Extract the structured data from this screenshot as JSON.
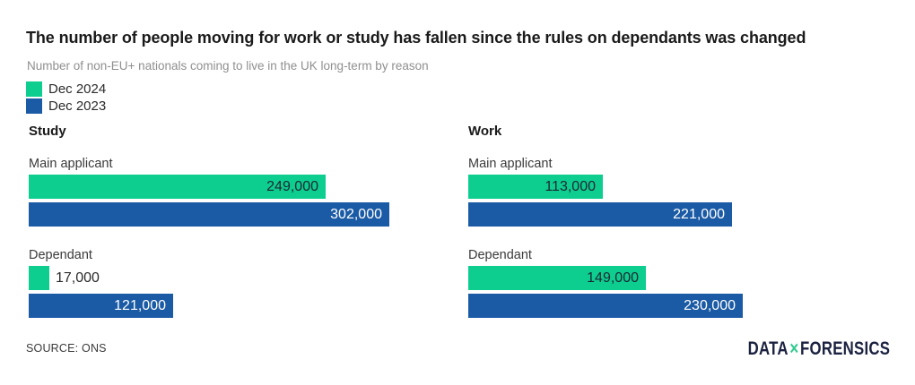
{
  "chart_data": {
    "type": "bar",
    "orientation": "horizontal",
    "title": "The number of people moving for work or study has fallen since the rules on dependants was changed",
    "subtitle": "Number of non-EU+ nationals coming to live in the UK long-term by reason",
    "legend_position": "top-left",
    "grid": false,
    "value_axis": {
      "min": 0,
      "max": 360000,
      "tick_labels_shown": false
    },
    "series": [
      {
        "name": "Dec 2024",
        "color": "#0dce8f",
        "value_text_color": "#1a2733"
      },
      {
        "name": "Dec 2023",
        "color": "#1b5aa5",
        "value_text_color": "#ffffff"
      }
    ],
    "panels": [
      {
        "title": "Study",
        "groups": [
          {
            "label": "Main applicant",
            "values": [
              249000,
              302000
            ],
            "value_labels": [
              "249,000",
              "302,000"
            ]
          },
          {
            "label": "Dependant",
            "values": [
              17000,
              121000
            ],
            "value_labels": [
              "17,000",
              "121,000"
            ]
          }
        ]
      },
      {
        "title": "Work",
        "groups": [
          {
            "label": "Main applicant",
            "values": [
              113000,
              221000
            ],
            "value_labels": [
              "113,000",
              "221,000"
            ]
          },
          {
            "label": "Dependant",
            "values": [
              149000,
              230000
            ],
            "value_labels": [
              "149,000",
              "230,000"
            ]
          }
        ]
      }
    ]
  },
  "footer": {
    "source": "SOURCE: ONS"
  },
  "brand": {
    "part1": "DATA",
    "separator": "×",
    "part2": "FORENSICS"
  },
  "colors": {
    "title_text": "#1a1a1a",
    "subtitle_text": "#8f8f8f",
    "brand_navy": "#1b2240",
    "brand_accent": "#2fcb8f"
  }
}
